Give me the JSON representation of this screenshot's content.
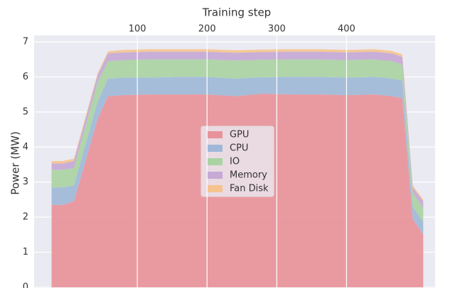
{
  "chart_data": {
    "type": "stacked_area",
    "x_label": "Training step",
    "y_label": "Power (MW)",
    "x": [
      -23,
      -7,
      9,
      43,
      58,
      80,
      120,
      160,
      200,
      240,
      280,
      320,
      360,
      400,
      440,
      465,
      480,
      495,
      510
    ],
    "series": [
      {
        "name": "GPU",
        "color": "#e8929a",
        "values": [
          2.35,
          2.35,
          2.45,
          4.8,
          5.45,
          5.48,
          5.5,
          5.5,
          5.5,
          5.45,
          5.52,
          5.5,
          5.5,
          5.48,
          5.5,
          5.45,
          5.4,
          1.95,
          1.5
        ]
      },
      {
        "name": "CPU",
        "color": "#9fb8d8",
        "values": [
          0.5,
          0.5,
          0.45,
          0.5,
          0.5,
          0.5,
          0.48,
          0.5,
          0.5,
          0.5,
          0.47,
          0.5,
          0.5,
          0.5,
          0.5,
          0.5,
          0.5,
          0.35,
          0.35
        ]
      },
      {
        "name": "IO",
        "color": "#a9d3a3",
        "values": [
          0.5,
          0.5,
          0.5,
          0.55,
          0.5,
          0.5,
          0.52,
          0.5,
          0.5,
          0.52,
          0.5,
          0.5,
          0.5,
          0.5,
          0.5,
          0.5,
          0.45,
          0.4,
          0.4
        ]
      },
      {
        "name": "Memory",
        "color": "#c6a9d5",
        "values": [
          0.18,
          0.18,
          0.2,
          0.2,
          0.22,
          0.22,
          0.22,
          0.22,
          0.22,
          0.22,
          0.22,
          0.22,
          0.22,
          0.22,
          0.22,
          0.22,
          0.22,
          0.15,
          0.2
        ]
      },
      {
        "name": "Fan Disk",
        "color": "#f5c48e",
        "values": [
          0.07,
          0.07,
          0.07,
          0.05,
          0.06,
          0.07,
          0.07,
          0.07,
          0.07,
          0.07,
          0.07,
          0.07,
          0.07,
          0.07,
          0.07,
          0.07,
          0.07,
          0.05,
          0.05
        ]
      }
    ],
    "xlim": [
      -48,
      527
    ],
    "ylim": [
      0,
      7
    ],
    "xticks": [
      100,
      200,
      300,
      400
    ],
    "yticks": [
      0,
      1,
      2,
      3,
      4,
      5,
      6,
      7
    ],
    "grid": true,
    "legend": "center"
  }
}
